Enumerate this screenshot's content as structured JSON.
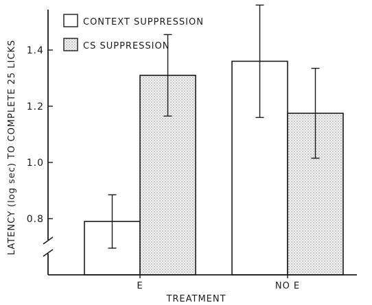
{
  "chart_data": {
    "type": "bar",
    "categories": [
      "E",
      "NO E"
    ],
    "series": [
      {
        "name": "CONTEXT SUPPRESSION",
        "values": [
          0.79,
          1.36
        ],
        "errors": [
          0.095,
          0.2
        ],
        "fill": "none"
      },
      {
        "name": "CS SUPPRESSION",
        "values": [
          1.31,
          1.175
        ],
        "errors": [
          0.145,
          0.16
        ],
        "fill": "stippled"
      }
    ],
    "xlabel": "TREATMENT",
    "ylabel": "LATENCY (log sec) TO COMPLETE 25 LICKS",
    "ylim": [
      0.6,
      1.55
    ],
    "yticks": [
      0.8,
      1.0,
      1.2,
      1.4
    ],
    "ytick_labels": [
      "0.8",
      "1.0",
      "1.2",
      "1.4"
    ],
    "axis_break": true,
    "legend_position": "top-left",
    "colors": {
      "ink": "#1a1a1a",
      "stipple": "#b9b9b9"
    }
  }
}
